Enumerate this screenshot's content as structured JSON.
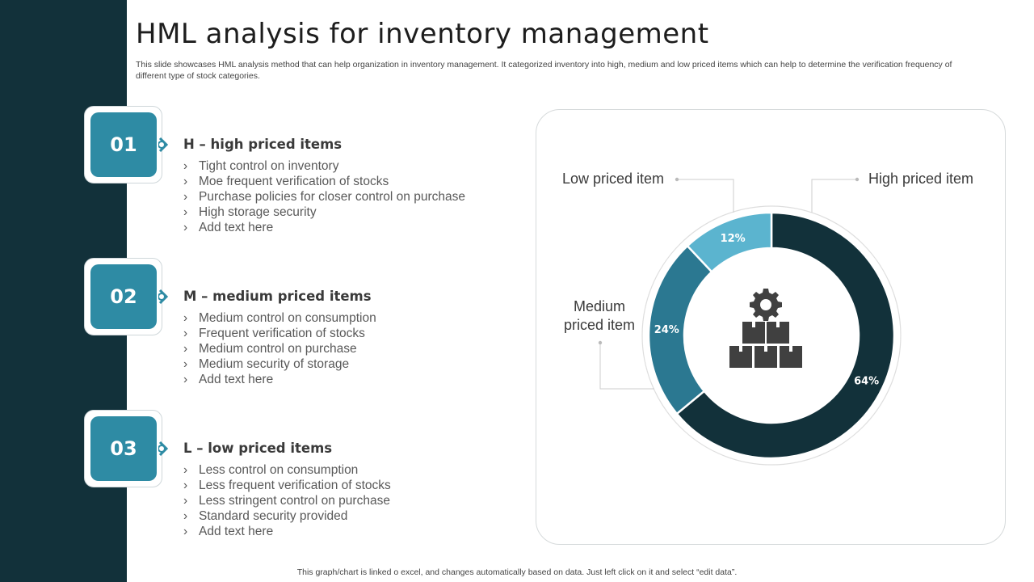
{
  "header": {
    "title": "HML analysis for inventory management",
    "subtitle": "This slide showcases HML analysis method that can help organization in inventory management. It categorized inventory into high, medium and low priced items which can help to determine the verification frequency of different type of stock categories."
  },
  "sections": [
    {
      "number": "01",
      "title": "H – high priced items",
      "bullets": [
        "Tight control on inventory",
        "Moe frequent verification of stocks",
        "Purchase policies for closer control on purchase",
        "High storage security",
        "Add text here"
      ]
    },
    {
      "number": "02",
      "title": "M – medium priced items",
      "bullets": [
        "Medium control on consumption",
        "Frequent verification of stocks",
        "Medium control on purchase",
        "Medium security  of storage",
        "Add text here"
      ]
    },
    {
      "number": "03",
      "title": "L – low priced items",
      "bullets": [
        "Less control on consumption",
        "Less frequent verification of stocks",
        "Less stringent control on purchase",
        "Standard security provided",
        "Add text here"
      ]
    }
  ],
  "bullet_glyph": "›",
  "chart_data": {
    "type": "pie",
    "variant": "donut",
    "categories": [
      "High priced item",
      "Medium priced item",
      "Low priced item"
    ],
    "values": [
      64,
      24,
      12
    ],
    "labels": [
      "64%",
      "24%",
      "12%"
    ],
    "legend_labels": {
      "high": "High priced item",
      "medium": [
        "Medium",
        "priced item"
      ],
      "low": "Low priced item"
    },
    "colors": [
      "#12313a",
      "#2b7891",
      "#5bb4cf"
    ],
    "center_icon": "gear-boxes-icon"
  },
  "footer": {
    "note": "This graph/chart is linked o excel, and changes automatically based on data. Just left click on it and select “edit data”."
  }
}
